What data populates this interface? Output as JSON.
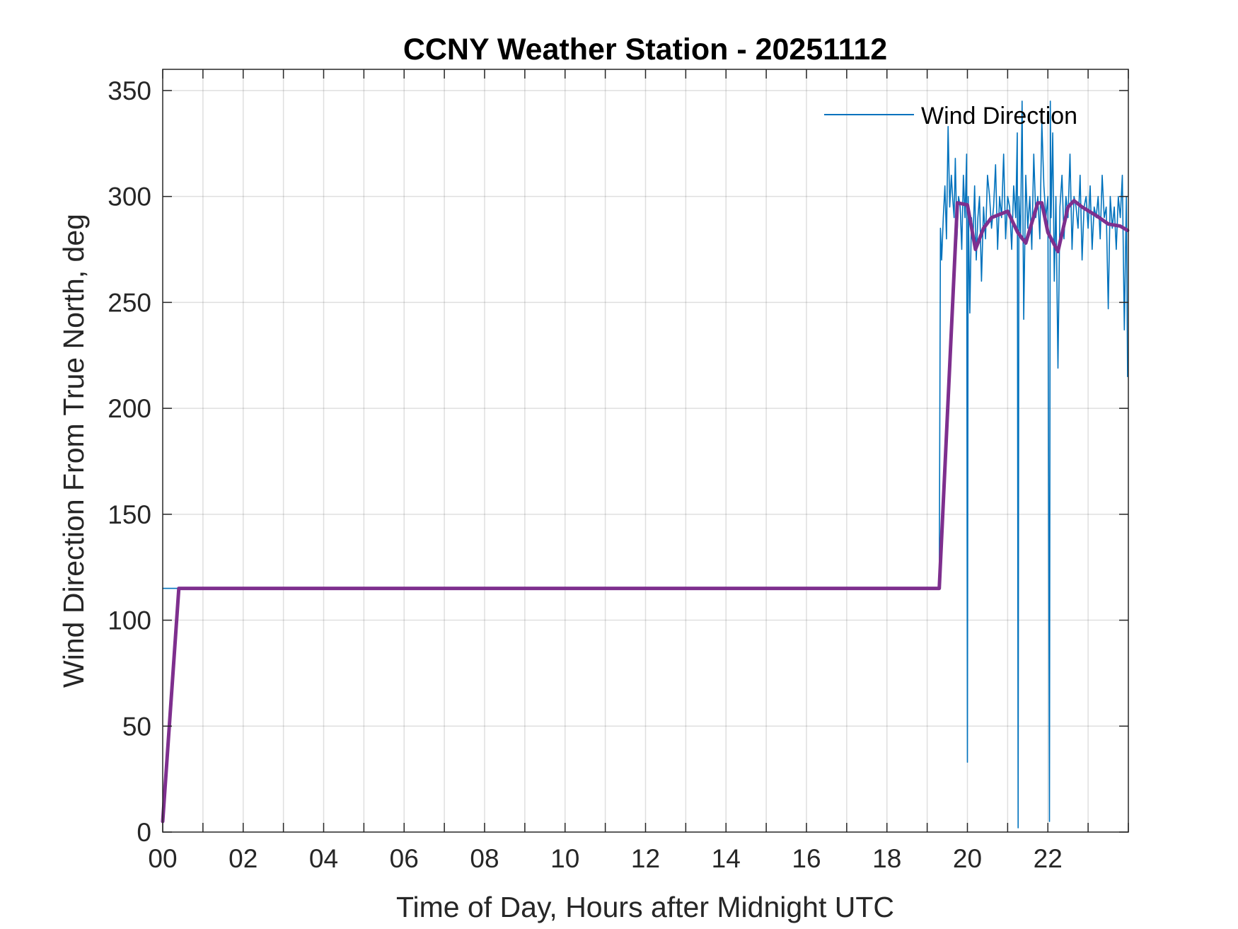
{
  "chart_data": {
    "type": "line",
    "title": "CCNY Weather Station - 20251112",
    "xlabel": "Time of Day, Hours after Midnight UTC",
    "ylabel": "Wind Direction From True North, deg",
    "xlim": [
      0,
      24
    ],
    "ylim": [
      0,
      360
    ],
    "x_ticks": [
      0,
      2,
      4,
      6,
      8,
      10,
      12,
      14,
      16,
      18,
      20,
      22
    ],
    "x_tick_labels": [
      "00",
      "02",
      "04",
      "06",
      "08",
      "10",
      "12",
      "14",
      "16",
      "18",
      "20",
      "22"
    ],
    "y_ticks": [
      0,
      50,
      100,
      150,
      200,
      250,
      300,
      350
    ],
    "y_tick_labels": [
      "0",
      "50",
      "100",
      "150",
      "200",
      "250",
      "300",
      "350"
    ],
    "grid": true,
    "legend_position": "top-right",
    "series": [
      {
        "name": "Wind Direction",
        "color": "#0072BD",
        "x": [
          0,
          0.05,
          19.3,
          19.33,
          19.36,
          19.4,
          19.44,
          19.48,
          19.52,
          19.56,
          19.6,
          19.63,
          19.67,
          19.7,
          19.74,
          19.78,
          19.82,
          19.86,
          19.9,
          19.94,
          19.98,
          20.0,
          20.02,
          20.06,
          20.1,
          20.14,
          20.18,
          20.22,
          20.26,
          20.3,
          20.35,
          20.4,
          20.45,
          20.5,
          20.55,
          20.6,
          20.65,
          20.7,
          20.75,
          20.8,
          20.85,
          20.9,
          20.95,
          21.0,
          21.05,
          21.1,
          21.15,
          21.2,
          21.24,
          21.26,
          21.28,
          21.32,
          21.36,
          21.4,
          21.45,
          21.5,
          21.55,
          21.6,
          21.65,
          21.7,
          21.75,
          21.8,
          21.85,
          21.9,
          21.95,
          22.0,
          22.04,
          22.06,
          22.08,
          22.12,
          22.16,
          22.2,
          22.25,
          22.3,
          22.35,
          22.4,
          22.45,
          22.5,
          22.55,
          22.6,
          22.65,
          22.7,
          22.75,
          22.8,
          22.85,
          22.9,
          22.95,
          23.0,
          23.05,
          23.1,
          23.15,
          23.2,
          23.25,
          23.3,
          23.35,
          23.4,
          23.45,
          23.5,
          23.55,
          23.6,
          23.65,
          23.7,
          23.75,
          23.8,
          23.85,
          23.9,
          23.95,
          23.98
        ],
        "values": [
          115,
          115,
          115,
          285,
          270,
          290,
          305,
          280,
          333,
          295,
          310,
          300,
          290,
          318,
          280,
          300,
          295,
          275,
          310,
          290,
          320,
          33,
          300,
          245,
          290,
          280,
          305,
          270,
          290,
          300,
          260,
          295,
          280,
          310,
          300,
          285,
          295,
          315,
          275,
          300,
          290,
          320,
          280,
          300,
          295,
          275,
          305,
          290,
          330,
          2,
          300,
          280,
          345,
          242,
          310,
          285,
          300,
          275,
          320,
          290,
          300,
          280,
          335,
          305,
          290,
          300,
          5,
          345,
          290,
          330,
          260,
          300,
          219,
          295,
          310,
          280,
          300,
          290,
          320,
          275,
          300,
          295,
          285,
          310,
          270,
          295,
          300,
          285,
          305,
          275,
          295,
          290,
          300,
          280,
          310,
          290,
          295,
          247,
          300,
          285,
          295,
          275,
          300,
          290,
          310,
          237,
          300,
          215
        ]
      },
      {
        "name": "",
        "color": "#7E2F8E",
        "x": [
          0,
          0.4,
          19.3,
          19.75,
          20.0,
          20.2,
          20.4,
          20.6,
          21.0,
          21.25,
          21.45,
          21.75,
          21.85,
          22.0,
          22.25,
          22.5,
          22.65,
          22.85,
          23.2,
          23.5,
          23.8,
          23.98
        ],
        "values": [
          5,
          115,
          115,
          297,
          296,
          275,
          285,
          290,
          293,
          283,
          278,
          297,
          297,
          283,
          274,
          295,
          298,
          295,
          291,
          287,
          286,
          284
        ]
      }
    ]
  }
}
